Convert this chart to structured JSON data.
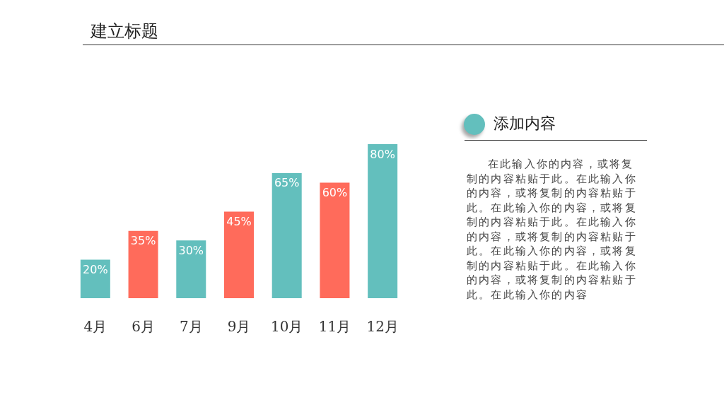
{
  "chart_data": {
    "type": "bar",
    "title": "建立标题",
    "categories": [
      "4月",
      "6月",
      "7月",
      "9月",
      "10月",
      "11月",
      "12月"
    ],
    "values": [
      20,
      35,
      30,
      45,
      65,
      60,
      80
    ],
    "colors": [
      "#63bfbd",
      "#ff6b5b",
      "#63bfbd",
      "#ff6b5b",
      "#63bfbd",
      "#ff6b5b",
      "#63bfbd"
    ],
    "value_labels": [
      "20%",
      "35%",
      "30%",
      "45%",
      "65%",
      "60%",
      "80%"
    ],
    "annotations": [
      "添加内容",
      "在此输入你的内容，或将复制的内容粘贴于此。在此输入你的内容，或将复制的内容粘贴于此。在此输入你的内容，或将复制的内容粘贴于此。在此输入你的内容，或将复制的内容粘贴于此。在此输入你的内容，或将复制的内容粘贴于此。在此输入你的内容，或将复制的内容粘贴于此。在此输入你的内容"
    ],
    "orientation": "vertical"
  }
}
